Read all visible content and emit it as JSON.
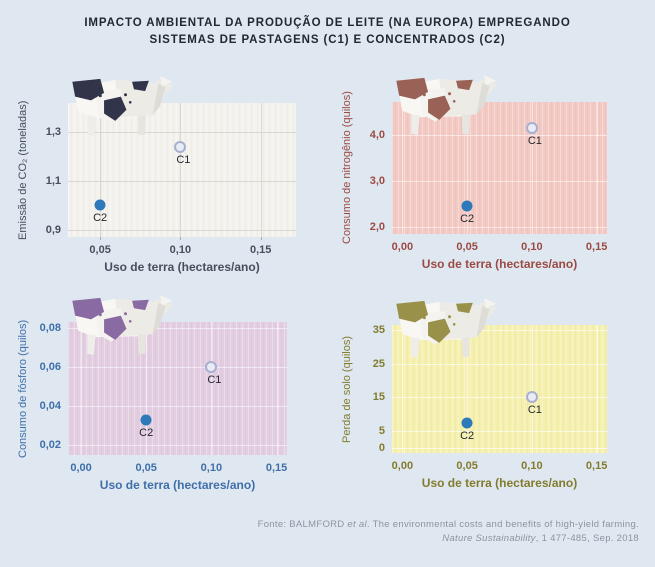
{
  "page": {
    "background": "#dfe8f1",
    "title_line1": "IMPACTO AMBIENTAL DA PRODUÇÃO DE LEITE (NA EUROPA) EMPREGANDO",
    "title_line2": "SISTEMAS DE PASTAGENS (C1) E CONCENTRADOS (C2)",
    "title_color": "#23272e"
  },
  "point_colors": {
    "c1_fill": "#e9ecf6",
    "c1_border": "#a7b0cf",
    "c2_fill": "#2e79b9",
    "label_color": "#24272e"
  },
  "chart_data": [
    {
      "type": "scatter",
      "position": "top-left",
      "xlabel": "Uso de terra (hectares/ano)",
      "ylabel": "Emissão de CO₂ (toneladas)",
      "x_range": [
        0.03,
        0.172
      ],
      "y_range": [
        0.87,
        1.42
      ],
      "x_ticks": [
        {
          "v": 0.05,
          "label": "0,05"
        },
        {
          "v": 0.1,
          "label": "0,10"
        },
        {
          "v": 0.15,
          "label": "0,15"
        }
      ],
      "y_ticks": [
        {
          "v": 0.9,
          "label": "0,9"
        },
        {
          "v": 1.1,
          "label": "1,1"
        },
        {
          "v": 1.3,
          "label": "1,3"
        }
      ],
      "points": [
        {
          "name": "C1",
          "x": 0.1,
          "y": 1.24,
          "style": "open"
        },
        {
          "name": "C2",
          "x": 0.05,
          "y": 1.0,
          "style": "solid"
        }
      ],
      "tick_marks": true,
      "colors": {
        "plot_bg": "#f4f2ed",
        "grid": "#d9d7d2",
        "label": "#474e5d",
        "cow_patch": "#32344a"
      }
    },
    {
      "type": "scatter",
      "position": "top-right",
      "xlabel": "Uso de terra (hectares/ano)",
      "ylabel": "Consumo de nitrogênio (quilos)",
      "x_range": [
        -0.008,
        0.158
      ],
      "y_range": [
        1.85,
        4.72
      ],
      "x_ticks": [
        {
          "v": 0.0,
          "label": "0,00"
        },
        {
          "v": 0.05,
          "label": "0,05"
        },
        {
          "v": 0.1,
          "label": "0,10"
        },
        {
          "v": 0.15,
          "label": "0,15"
        }
      ],
      "y_ticks": [
        {
          "v": 2.0,
          "label": "2,0"
        },
        {
          "v": 3.0,
          "label": "3,0"
        },
        {
          "v": 4.0,
          "label": "4,0"
        }
      ],
      "points": [
        {
          "name": "C1",
          "x": 0.1,
          "y": 4.15,
          "style": "open"
        },
        {
          "name": "C2",
          "x": 0.05,
          "y": 2.45,
          "style": "solid"
        }
      ],
      "tick_marks": false,
      "colors": {
        "plot_bg": "#f3c9c3",
        "grid": "rgba(255,255,255,0.55)",
        "label": "#9b4a43",
        "cow_patch": "#9a6156"
      }
    },
    {
      "type": "scatter",
      "position": "bottom-left",
      "xlabel": "Uso de terra (hectares/ano)",
      "ylabel": "Consumo de fósforo (quilos)",
      "x_range": [
        -0.01,
        0.158
      ],
      "y_range": [
        0.015,
        0.083
      ],
      "x_ticks": [
        {
          "v": 0.0,
          "label": "0,00"
        },
        {
          "v": 0.05,
          "label": "0,05"
        },
        {
          "v": 0.1,
          "label": "0,10"
        },
        {
          "v": 0.15,
          "label": "0,15"
        }
      ],
      "y_ticks": [
        {
          "v": 0.02,
          "label": "0,02"
        },
        {
          "v": 0.04,
          "label": "0,04"
        },
        {
          "v": 0.06,
          "label": "0,06"
        },
        {
          "v": 0.08,
          "label": "0,08"
        }
      ],
      "points": [
        {
          "name": "C1",
          "x": 0.1,
          "y": 0.06,
          "style": "open"
        },
        {
          "name": "C2",
          "x": 0.05,
          "y": 0.033,
          "style": "solid"
        }
      ],
      "tick_marks": false,
      "colors": {
        "plot_bg": "#e3cde1",
        "grid": "rgba(255,255,255,0.55)",
        "label": "#3f6fa9",
        "cow_patch": "#8a6aa2"
      }
    },
    {
      "type": "scatter",
      "position": "bottom-right",
      "xlabel": "Uso de terra (hectares/ano)",
      "ylabel": "Perda de solo (quilos)",
      "x_range": [
        -0.008,
        0.158
      ],
      "y_range": [
        -1.5,
        36.5
      ],
      "x_ticks": [
        {
          "v": 0.0,
          "label": "0,00"
        },
        {
          "v": 0.05,
          "label": "0,05"
        },
        {
          "v": 0.1,
          "label": "0,10"
        },
        {
          "v": 0.15,
          "label": "0,15"
        }
      ],
      "y_ticks": [
        {
          "v": 0,
          "label": "0"
        },
        {
          "v": 5,
          "label": "5"
        },
        {
          "v": 15,
          "label": "15"
        },
        {
          "v": 25,
          "label": "25"
        },
        {
          "v": 35,
          "label": "35"
        }
      ],
      "points": [
        {
          "name": "C1",
          "x": 0.1,
          "y": 15,
          "style": "open"
        },
        {
          "name": "C2",
          "x": 0.05,
          "y": 7.5,
          "style": "solid"
        }
      ],
      "tick_marks": false,
      "colors": {
        "plot_bg": "#f6f0ae",
        "grid": "rgba(255,255,255,0.6)",
        "label": "#827b2d",
        "cow_patch": "#99914a"
      }
    }
  ],
  "source": {
    "parts": [
      {
        "text": "Fonte: BALMFORD "
      },
      {
        "text": "et al"
      },
      {
        "text": ". The environmental costs and benefits of high-yield farming. "
      },
      {
        "text": "Nature Sustainability"
      },
      {
        "text": ", 1 477-485, Sep. 2018"
      }
    ]
  }
}
